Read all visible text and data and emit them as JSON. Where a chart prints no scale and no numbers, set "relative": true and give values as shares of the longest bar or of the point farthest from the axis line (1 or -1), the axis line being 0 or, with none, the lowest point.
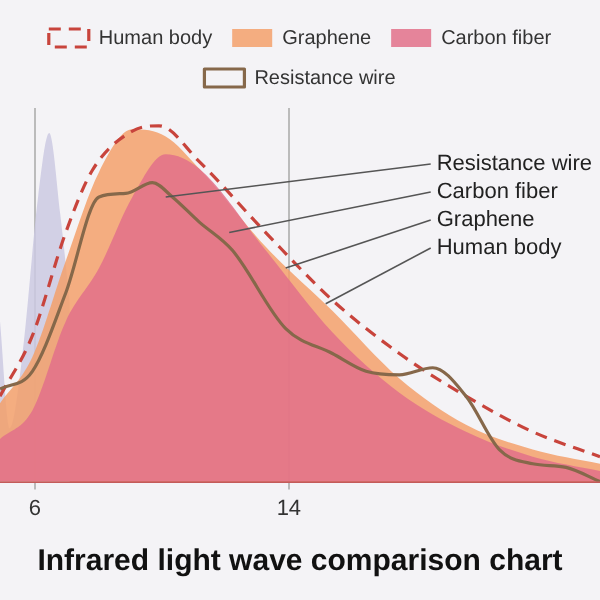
{
  "chart_data": {
    "type": "area",
    "title": "Infrared light wave comparison chart",
    "relative": true,
    "xlim": [
      4.9,
      23.8
    ],
    "xticks": [
      6,
      14
    ],
    "grid": "x",
    "legend": "top",
    "series": [
      {
        "color": "#cbc9e2",
        "x": [
          4.9,
          5.2,
          5.6,
          6.1,
          6.45,
          6.8,
          7.1
        ],
        "values": [
          0.45,
          0.15,
          0.35,
          0.8,
          0.98,
          0.75,
          0.5
        ]
      },
      {
        "type": "line",
        "name": "Human body",
        "color": "#c8443c",
        "line_style": "dashed",
        "x": [
          4.9,
          5.92,
          6.97,
          7.81,
          9.07,
          9.91,
          11.17,
          13.27,
          15.37,
          17.48,
          19.58,
          21.68,
          23.8
        ],
        "values": [
          0.24,
          0.41,
          0.7,
          0.875,
          0.985,
          1,
          0.9,
          0.7,
          0.51,
          0.36,
          0.24,
          0.14,
          0.07
        ]
      },
      {
        "name": "Graphene",
        "color": "#f3a06b",
        "x": [
          4.9,
          5.92,
          6.97,
          8.02,
          9.07,
          10.12,
          11.17,
          13.27,
          15.37,
          17.48,
          19.58,
          21.68,
          23.8
        ],
        "values": [
          0.22,
          0.35,
          0.62,
          0.87,
          0.99,
          0.97,
          0.88,
          0.66,
          0.48,
          0.29,
          0.16,
          0.09,
          0.05
        ]
      },
      {
        "name": "Carbon fiber",
        "color": "#e2708a",
        "x": [
          4.9,
          5.92,
          6.97,
          8.02,
          9.07,
          10.12,
          11.17,
          13.27,
          15.37,
          17.48,
          19.58,
          21.68,
          23.8
        ],
        "values": [
          0.12,
          0.2,
          0.45,
          0.6,
          0.8,
          0.92,
          0.88,
          0.65,
          0.42,
          0.25,
          0.14,
          0.07,
          0.03
        ]
      },
      {
        "type": "line",
        "name": "Resistance wire",
        "color": "#86684a",
        "x": [
          4.9,
          5.92,
          6.97,
          8.02,
          8.86,
          9.7,
          10.33,
          11.17,
          12.22,
          13.9,
          15.37,
          16.43,
          17.48,
          18.53,
          19.58,
          20.63,
          21.68,
          22.73,
          23.8
        ],
        "values": [
          0.26,
          0.31,
          0.53,
          0.8,
          0.81,
          0.84,
          0.8,
          0.73,
          0.65,
          0.43,
          0.36,
          0.31,
          0.3,
          0.32,
          0.24,
          0.09,
          0.05,
          0.04,
          0
        ]
      }
    ],
    "annotations": [
      {
        "text": "Resistance wire",
        "x": 10.12,
        "y": 0.8
      },
      {
        "text": "Carbon fiber",
        "x": 12.12,
        "y": 0.7
      },
      {
        "text": "Graphene",
        "x": 13.9,
        "y": 0.6
      },
      {
        "text": "Human body",
        "x": 15.16,
        "y": 0.5
      }
    ]
  }
}
